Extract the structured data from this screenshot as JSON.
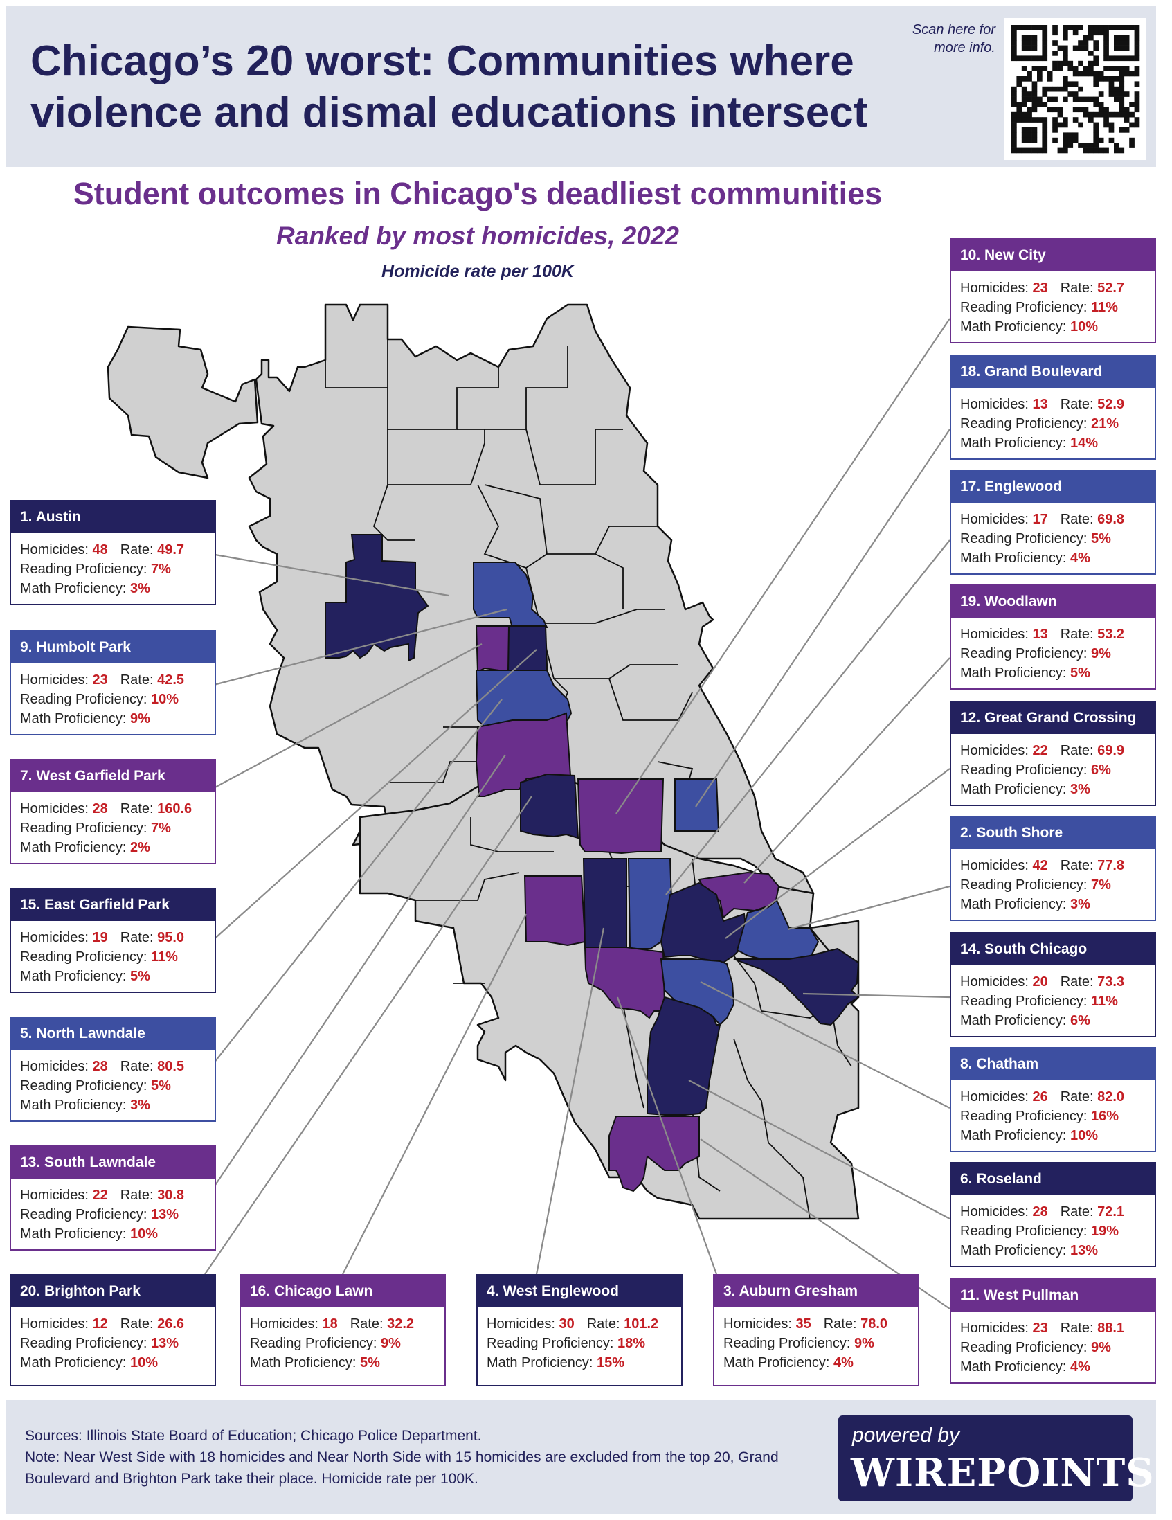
{
  "headline": "Chicago’s 20 worst: Communities where violence and dismal educations intersect",
  "scan_note": "Scan here for more info.",
  "subtitle": "Student outcomes in Chicago's deadliest communities",
  "ranking_note": "Ranked by most homicides, 2022",
  "rate_note": "Homicide rate per 100K",
  "field_labels": {
    "homicides": "Homicides:",
    "rate": "Rate:",
    "reading": "Reading Proficiency:",
    "math": "Math Proficiency:"
  },
  "colors": {
    "navy": "#23215e",
    "blue": "#3d4fa1",
    "purple": "#6a2f8c",
    "map_gray": "#d0d0d0",
    "value_red": "#c41e24",
    "header_bg": "#dfe3ec"
  },
  "communities": [
    {
      "title": "1. Austin",
      "homicides": "48",
      "rate": "49.7",
      "reading": "7%",
      "math": "3%",
      "color": "navy"
    },
    {
      "title": "9. Humbolt Park",
      "homicides": "23",
      "rate": "42.5",
      "reading": "10%",
      "math": "9%",
      "color": "blue"
    },
    {
      "title": "7. West Garfield Park",
      "homicides": "28",
      "rate": "160.6",
      "reading": "7%",
      "math": "2%",
      "color": "purple"
    },
    {
      "title": "15. East Garfield Park",
      "homicides": "19",
      "rate": "95.0",
      "reading": "11%",
      "math": "5%",
      "color": "navy"
    },
    {
      "title": "5. North Lawndale",
      "homicides": "28",
      "rate": "80.5",
      "reading": "5%",
      "math": "3%",
      "color": "blue"
    },
    {
      "title": "13. South Lawndale",
      "homicides": "22",
      "rate": "30.8",
      "reading": "13%",
      "math": "10%",
      "color": "purple"
    },
    {
      "title": "20. Brighton Park",
      "homicides": "12",
      "rate": "26.6",
      "reading": "13%",
      "math": "10%",
      "color": "navy"
    },
    {
      "title": "16. Chicago Lawn",
      "homicides": "18",
      "rate": "32.2",
      "reading": "9%",
      "math": "5%",
      "color": "purple"
    },
    {
      "title": "4. West Englewood",
      "homicides": "30",
      "rate": "101.2",
      "reading": "18%",
      "math": "15%",
      "color": "navy"
    },
    {
      "title": "3. Auburn Gresham",
      "homicides": "35",
      "rate": "78.0",
      "reading": "9%",
      "math": "4%",
      "color": "purple"
    },
    {
      "title": "10. New City",
      "homicides": "23",
      "rate": "52.7",
      "reading": "11%",
      "math": "10%",
      "color": "purple"
    },
    {
      "title": "18. Grand Boulevard",
      "homicides": "13",
      "rate": "52.9",
      "reading": "21%",
      "math": "14%",
      "color": "blue"
    },
    {
      "title": "17. Englewood",
      "homicides": "17",
      "rate": "69.8",
      "reading": "5%",
      "math": "4%",
      "color": "blue"
    },
    {
      "title": "19. Woodlawn",
      "homicides": "13",
      "rate": "53.2",
      "reading": "9%",
      "math": "5%",
      "color": "purple"
    },
    {
      "title": "12. Great Grand Crossing",
      "homicides": "22",
      "rate": "69.9",
      "reading": "6%",
      "math": "3%",
      "color": "navy"
    },
    {
      "title": "2. South Shore",
      "homicides": "42",
      "rate": "77.8",
      "reading": "7%",
      "math": "3%",
      "color": "blue"
    },
    {
      "title": "14. South Chicago",
      "homicides": "20",
      "rate": "73.3",
      "reading": "11%",
      "math": "6%",
      "color": "navy"
    },
    {
      "title": "8. Chatham",
      "homicides": "26",
      "rate": "82.0",
      "reading": "16%",
      "math": "10%",
      "color": "blue"
    },
    {
      "title": "6. Roseland",
      "homicides": "28",
      "rate": "72.1",
      "reading": "19%",
      "math": "13%",
      "color": "navy"
    },
    {
      "title": "11. West Pullman",
      "homicides": "23",
      "rate": "88.1",
      "reading": "9%",
      "math": "4%",
      "color": "purple"
    }
  ],
  "footer": {
    "sources": "Sources: Illinois State Board of Education; Chicago Police Department.",
    "note": "Note: Near West Side with 18 homicides and Near North Side with 15 homicides are excluded from the top 20, Grand Boulevard and Brighton Park take their place. Homicide rate per 100K."
  },
  "badge": {
    "small": "powered by",
    "big": "WIREPOINTS"
  }
}
